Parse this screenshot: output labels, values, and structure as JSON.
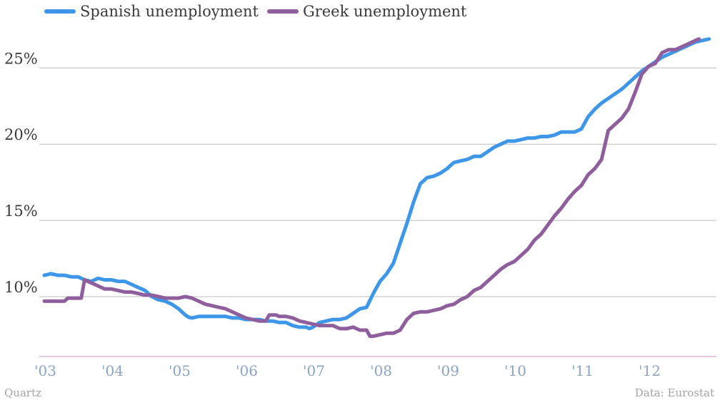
{
  "legend": {
    "spain_label": "Spanish unemployment",
    "greece_label": "Greek unemployment"
  },
  "footer": {
    "source_left": "Quartz",
    "source_right": "Data: Eurostat"
  },
  "colors": {
    "spain": "#3d96e8",
    "greece": "#8f5e9c"
  },
  "chart_data": {
    "type": "line",
    "title": "",
    "xlabel": "",
    "ylabel": "",
    "x_ticks": [
      "'03",
      "'04",
      "'05",
      "'06",
      "'07",
      "'08",
      "'09",
      "'10",
      "'11",
      "'12"
    ],
    "y_ticks": [
      "10%",
      "15%",
      "20%",
      "25%"
    ],
    "ylim": [
      6,
      28
    ],
    "xlim": [
      2003.0,
      2013.0
    ],
    "grid": true,
    "legend_position": "top-left",
    "series": [
      {
        "name": "Spanish unemployment",
        "points": [
          [
            2003.0,
            11.4
          ],
          [
            2003.1,
            11.5
          ],
          [
            2003.2,
            11.4
          ],
          [
            2003.3,
            11.4
          ],
          [
            2003.4,
            11.3
          ],
          [
            2003.5,
            11.3
          ],
          [
            2003.55,
            11.2
          ],
          [
            2003.6,
            11.1
          ],
          [
            2003.7,
            11.0
          ],
          [
            2003.8,
            11.2
          ],
          [
            2003.9,
            11.1
          ],
          [
            2004.0,
            11.1
          ],
          [
            2004.1,
            11.0
          ],
          [
            2004.2,
            11.0
          ],
          [
            2004.3,
            10.8
          ],
          [
            2004.4,
            10.6
          ],
          [
            2004.5,
            10.4
          ],
          [
            2004.55,
            10.2
          ],
          [
            2004.6,
            10.0
          ],
          [
            2004.7,
            9.8
          ],
          [
            2004.8,
            9.7
          ],
          [
            2004.9,
            9.5
          ],
          [
            2005.0,
            9.2
          ],
          [
            2005.1,
            8.8
          ],
          [
            2005.15,
            8.65
          ],
          [
            2005.2,
            8.6
          ],
          [
            2005.3,
            8.7
          ],
          [
            2005.4,
            8.7
          ],
          [
            2005.5,
            8.7
          ],
          [
            2005.6,
            8.7
          ],
          [
            2005.7,
            8.7
          ],
          [
            2005.8,
            8.6
          ],
          [
            2005.9,
            8.6
          ],
          [
            2006.0,
            8.5
          ],
          [
            2006.1,
            8.5
          ],
          [
            2006.2,
            8.5
          ],
          [
            2006.3,
            8.4
          ],
          [
            2006.4,
            8.4
          ],
          [
            2006.5,
            8.3
          ],
          [
            2006.6,
            8.3
          ],
          [
            2006.7,
            8.1
          ],
          [
            2006.8,
            8.0
          ],
          [
            2006.9,
            8.0
          ],
          [
            2006.95,
            7.9
          ],
          [
            2007.0,
            8.0
          ],
          [
            2007.1,
            8.3
          ],
          [
            2007.2,
            8.4
          ],
          [
            2007.3,
            8.5
          ],
          [
            2007.4,
            8.5
          ],
          [
            2007.5,
            8.6
          ],
          [
            2007.6,
            8.9
          ],
          [
            2007.7,
            9.2
          ],
          [
            2007.8,
            9.3
          ],
          [
            2007.9,
            10.2
          ],
          [
            2008.0,
            11.0
          ],
          [
            2008.1,
            11.5
          ],
          [
            2008.2,
            12.2
          ],
          [
            2008.3,
            13.5
          ],
          [
            2008.4,
            14.8
          ],
          [
            2008.5,
            16.2
          ],
          [
            2008.6,
            17.4
          ],
          [
            2008.7,
            17.8
          ],
          [
            2008.8,
            17.9
          ],
          [
            2008.9,
            18.1
          ],
          [
            2009.0,
            18.4
          ],
          [
            2009.1,
            18.8
          ],
          [
            2009.2,
            18.9
          ],
          [
            2009.3,
            19.0
          ],
          [
            2009.4,
            19.2
          ],
          [
            2009.5,
            19.2
          ],
          [
            2009.6,
            19.5
          ],
          [
            2009.7,
            19.8
          ],
          [
            2009.8,
            20.0
          ],
          [
            2009.9,
            20.2
          ],
          [
            2010.0,
            20.2
          ],
          [
            2010.1,
            20.3
          ],
          [
            2010.2,
            20.4
          ],
          [
            2010.3,
            20.4
          ],
          [
            2010.4,
            20.5
          ],
          [
            2010.5,
            20.5
          ],
          [
            2010.6,
            20.6
          ],
          [
            2010.7,
            20.8
          ],
          [
            2010.8,
            20.8
          ],
          [
            2010.9,
            20.8
          ],
          [
            2011.0,
            21.0
          ],
          [
            2011.1,
            21.8
          ],
          [
            2011.2,
            22.3
          ],
          [
            2011.3,
            22.7
          ],
          [
            2011.4,
            23.0
          ],
          [
            2011.5,
            23.3
          ],
          [
            2011.6,
            23.6
          ],
          [
            2011.7,
            24.0
          ],
          [
            2011.8,
            24.4
          ],
          [
            2011.9,
            24.8
          ],
          [
            2012.0,
            25.1
          ],
          [
            2012.1,
            25.4
          ],
          [
            2012.2,
            25.7
          ],
          [
            2012.3,
            25.9
          ],
          [
            2012.4,
            26.1
          ],
          [
            2012.5,
            26.3
          ],
          [
            2012.6,
            26.5
          ],
          [
            2012.7,
            26.7
          ],
          [
            2012.8,
            26.8
          ],
          [
            2012.9,
            26.9
          ]
        ]
      },
      {
        "name": "Greek unemployment",
        "points": [
          [
            2003.0,
            9.7
          ],
          [
            2003.1,
            9.7
          ],
          [
            2003.2,
            9.7
          ],
          [
            2003.3,
            9.7
          ],
          [
            2003.35,
            9.9
          ],
          [
            2003.45,
            9.9
          ],
          [
            2003.55,
            9.9
          ],
          [
            2003.6,
            11.1
          ],
          [
            2003.7,
            10.9
          ],
          [
            2003.8,
            10.7
          ],
          [
            2003.9,
            10.5
          ],
          [
            2004.0,
            10.5
          ],
          [
            2004.1,
            10.4
          ],
          [
            2004.2,
            10.3
          ],
          [
            2004.3,
            10.3
          ],
          [
            2004.4,
            10.2
          ],
          [
            2004.5,
            10.1
          ],
          [
            2004.6,
            10.1
          ],
          [
            2004.7,
            10.0
          ],
          [
            2004.8,
            9.9
          ],
          [
            2004.9,
            9.9
          ],
          [
            2005.0,
            9.9
          ],
          [
            2005.1,
            10.0
          ],
          [
            2005.2,
            9.9
          ],
          [
            2005.3,
            9.7
          ],
          [
            2005.4,
            9.5
          ],
          [
            2005.5,
            9.4
          ],
          [
            2005.6,
            9.3
          ],
          [
            2005.7,
            9.2
          ],
          [
            2005.8,
            9.0
          ],
          [
            2005.9,
            8.8
          ],
          [
            2006.0,
            8.6
          ],
          [
            2006.1,
            8.5
          ],
          [
            2006.2,
            8.4
          ],
          [
            2006.25,
            8.4
          ],
          [
            2006.3,
            8.4
          ],
          [
            2006.35,
            8.8
          ],
          [
            2006.45,
            8.8
          ],
          [
            2006.5,
            8.7
          ],
          [
            2006.6,
            8.7
          ],
          [
            2006.7,
            8.6
          ],
          [
            2006.8,
            8.4
          ],
          [
            2006.9,
            8.3
          ],
          [
            2007.0,
            8.2
          ],
          [
            2007.1,
            8.1
          ],
          [
            2007.2,
            8.1
          ],
          [
            2007.3,
            8.1
          ],
          [
            2007.4,
            7.9
          ],
          [
            2007.5,
            7.9
          ],
          [
            2007.6,
            8.0
          ],
          [
            2007.7,
            7.8
          ],
          [
            2007.8,
            7.8
          ],
          [
            2007.85,
            7.4
          ],
          [
            2007.9,
            7.4
          ],
          [
            2008.0,
            7.5
          ],
          [
            2008.1,
            7.6
          ],
          [
            2008.2,
            7.6
          ],
          [
            2008.3,
            7.8
          ],
          [
            2008.4,
            8.5
          ],
          [
            2008.5,
            8.9
          ],
          [
            2008.6,
            9.0
          ],
          [
            2008.7,
            9.0
          ],
          [
            2008.8,
            9.1
          ],
          [
            2008.9,
            9.2
          ],
          [
            2009.0,
            9.4
          ],
          [
            2009.1,
            9.5
          ],
          [
            2009.2,
            9.8
          ],
          [
            2009.3,
            10.0
          ],
          [
            2009.4,
            10.4
          ],
          [
            2009.5,
            10.6
          ],
          [
            2009.6,
            11.0
          ],
          [
            2009.7,
            11.4
          ],
          [
            2009.8,
            11.8
          ],
          [
            2009.9,
            12.1
          ],
          [
            2010.0,
            12.3
          ],
          [
            2010.1,
            12.7
          ],
          [
            2010.2,
            13.1
          ],
          [
            2010.3,
            13.7
          ],
          [
            2010.4,
            14.1
          ],
          [
            2010.5,
            14.7
          ],
          [
            2010.6,
            15.3
          ],
          [
            2010.7,
            15.8
          ],
          [
            2010.8,
            16.4
          ],
          [
            2010.9,
            16.9
          ],
          [
            2011.0,
            17.3
          ],
          [
            2011.1,
            18.0
          ],
          [
            2011.2,
            18.4
          ],
          [
            2011.3,
            19.0
          ],
          [
            2011.4,
            20.9
          ],
          [
            2011.5,
            21.3
          ],
          [
            2011.6,
            21.7
          ],
          [
            2011.7,
            22.3
          ],
          [
            2011.8,
            23.4
          ],
          [
            2011.9,
            24.6
          ],
          [
            2012.0,
            25.1
          ],
          [
            2012.1,
            25.3
          ],
          [
            2012.2,
            26.0
          ],
          [
            2012.3,
            26.2
          ],
          [
            2012.4,
            26.2
          ],
          [
            2012.5,
            26.4
          ],
          [
            2012.6,
            26.6
          ],
          [
            2012.7,
            26.8
          ],
          [
            2012.75,
            26.9
          ]
        ]
      }
    ]
  }
}
